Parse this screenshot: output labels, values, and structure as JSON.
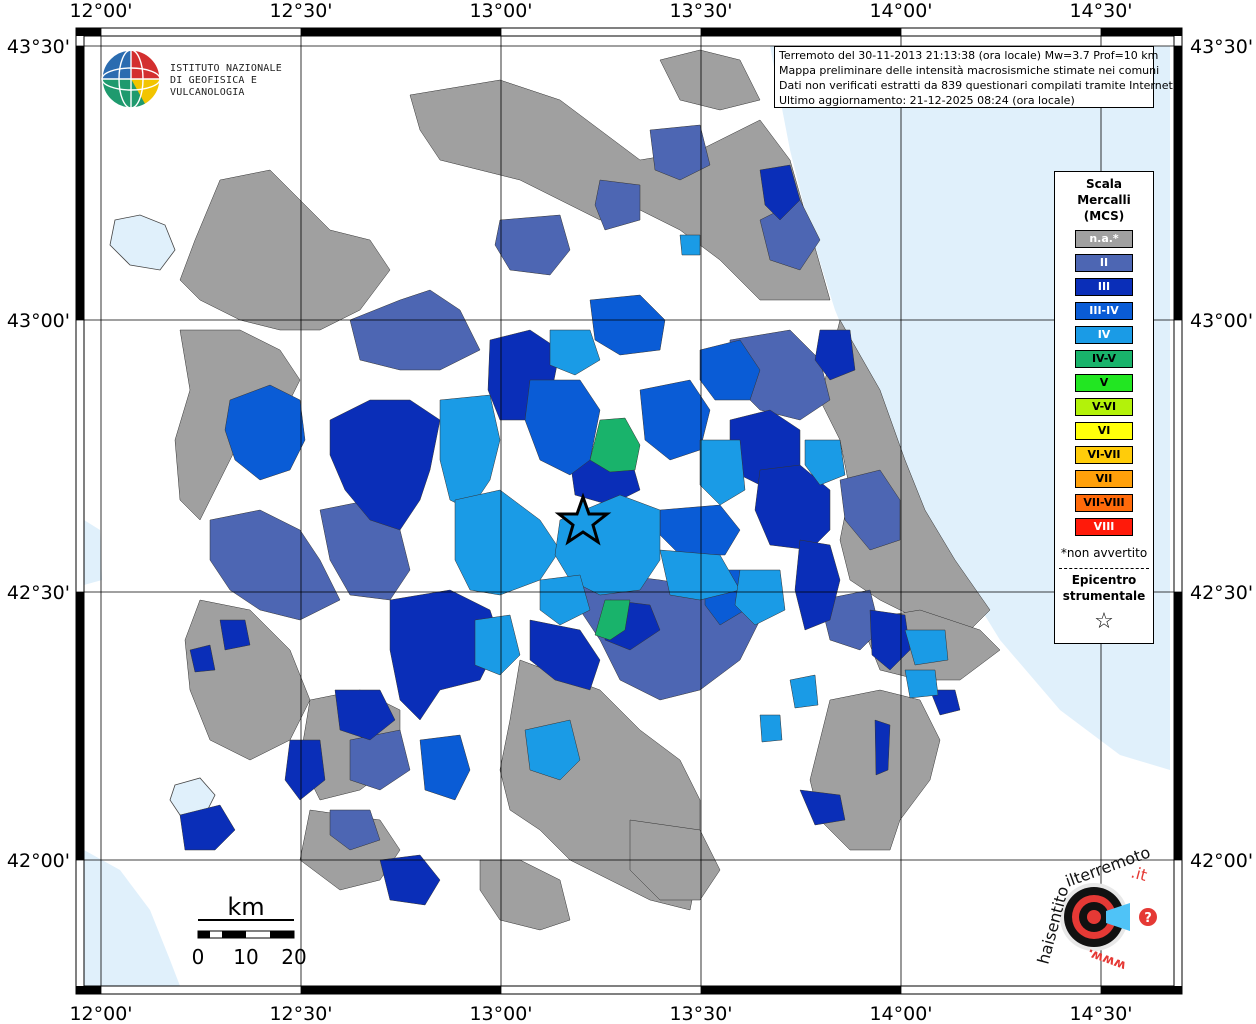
{
  "map": {
    "lon_ticks": [
      "12°00'",
      "12°30'",
      "13°00'",
      "13°30'",
      "14°00'",
      "14°30'"
    ],
    "lat_ticks": [
      "43°30'",
      "43°00'",
      "42°30'",
      "42°00'"
    ]
  },
  "info": {
    "line1": "Terremoto del 30-11-2013 21:13:38 (ora locale) Mw=3.7 Prof=10 km",
    "line2": "Mappa preliminare delle intensità macrosismiche stimate nei comuni",
    "line3": "Dati non verificati estratti da 839 questionari compilati tramite Internet.",
    "line4": "Ultimo aggiornamento: 21-12-2025 08:24 (ora locale)"
  },
  "logo": {
    "line1": "ISTITUTO NAZIONALE",
    "line2": "DI GEOFISICA E VULCANOLOGIA"
  },
  "legend": {
    "title1": "Scala",
    "title2": "Mercalli",
    "title3": "(MCS)",
    "items": [
      {
        "label": "n.a.*",
        "color": "#a0a0a0",
        "text_color": "#ffffff"
      },
      {
        "label": "II",
        "color": "#4d66b3",
        "text_color": "#ffffff"
      },
      {
        "label": "III",
        "color": "#0a2eb8",
        "text_color": "#ffffff"
      },
      {
        "label": "III-IV",
        "color": "#0a5cd6",
        "text_color": "#ffffff"
      },
      {
        "label": "IV",
        "color": "#1a9be6",
        "text_color": "#ffffff"
      },
      {
        "label": "IV-V",
        "color": "#19b36b",
        "text_color": "#000000"
      },
      {
        "label": "V",
        "color": "#22e622",
        "text_color": "#000000"
      },
      {
        "label": "V-VI",
        "color": "#b3f20a",
        "text_color": "#000000"
      },
      {
        "label": "VI",
        "color": "#ffff0a",
        "text_color": "#000000"
      },
      {
        "label": "VI-VII",
        "color": "#ffcc0a",
        "text_color": "#000000"
      },
      {
        "label": "VII",
        "color": "#ffa00a",
        "text_color": "#000000"
      },
      {
        "label": "VII-VIII",
        "color": "#ff6a0a",
        "text_color": "#000000"
      },
      {
        "label": "VIII",
        "color": "#ff1a0a",
        "text_color": "#ffffff"
      }
    ],
    "note": "*non avvertito",
    "epicenter1": "Epicentro",
    "epicenter2": "strumentale",
    "star": "☆"
  },
  "scale": {
    "unit": "km",
    "labels": [
      "0",
      "10",
      "20"
    ]
  },
  "hst": {
    "text1": "haisentito",
    "text2": "ilterremoto",
    "text3": ".it",
    "text4": "www.",
    "q": "?"
  }
}
